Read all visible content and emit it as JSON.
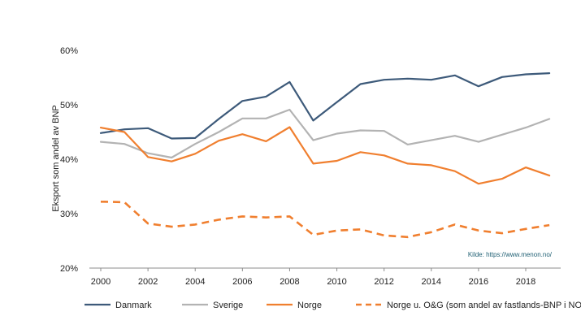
{
  "chart_data": {
    "type": "line",
    "title": "",
    "xlabel": "",
    "ylabel": "Eksport som andel av BNP",
    "ylim": [
      20,
      60
    ],
    "y_ticks": [
      20,
      30,
      40,
      50,
      60
    ],
    "y_tick_labels": [
      "20%",
      "30%",
      "40%",
      "50%",
      "60%"
    ],
    "x": [
      2000,
      2001,
      2002,
      2003,
      2004,
      2005,
      2006,
      2007,
      2008,
      2009,
      2010,
      2011,
      2012,
      2013,
      2014,
      2015,
      2016,
      2017,
      2018,
      2019
    ],
    "x_ticks": [
      2000,
      2002,
      2004,
      2006,
      2008,
      2010,
      2012,
      2014,
      2016,
      2018
    ],
    "x_tick_labels": [
      "2000",
      "2002",
      "2004",
      "2006",
      "2008",
      "2010",
      "2012",
      "2014",
      "2016",
      "2018"
    ],
    "grid": false,
    "legend_position": "bottom",
    "source_note": "Kilde: https://www.menon.no/",
    "series": [
      {
        "name": "Danmark",
        "color": "#3d5a7a",
        "dashed": false,
        "values": [
          44.8,
          45.5,
          45.7,
          43.8,
          43.9,
          47.4,
          50.7,
          51.5,
          54.2,
          47.1,
          50.5,
          53.8,
          54.6,
          54.8,
          54.6,
          55.4,
          53.4,
          55.1,
          55.6,
          55.8
        ]
      },
      {
        "name": "Sverige",
        "color": "#b3b3b3",
        "dashed": false,
        "values": [
          43.2,
          42.8,
          41.1,
          40.3,
          42.8,
          45.0,
          47.5,
          47.5,
          49.1,
          43.5,
          44.7,
          45.3,
          45.2,
          42.7,
          43.5,
          44.3,
          43.2,
          44.5,
          45.8,
          47.4
        ]
      },
      {
        "name": "Norge",
        "color": "#f07f2f",
        "dashed": false,
        "values": [
          45.8,
          45.0,
          40.4,
          39.6,
          41.0,
          43.4,
          44.6,
          43.3,
          45.9,
          39.2,
          39.7,
          41.3,
          40.7,
          39.2,
          38.9,
          37.8,
          35.5,
          36.4,
          38.5,
          37.0
        ]
      },
      {
        "name": "Norge u. O&G (som andel av fastlands-BNP i NOK)",
        "color": "#f07f2f",
        "dashed": true,
        "values": [
          32.2,
          32.1,
          28.2,
          27.6,
          28.0,
          28.9,
          29.5,
          29.3,
          29.5,
          26.1,
          26.9,
          27.1,
          26.0,
          25.7,
          26.6,
          28.0,
          26.9,
          26.4,
          27.2,
          27.9
        ]
      }
    ]
  }
}
